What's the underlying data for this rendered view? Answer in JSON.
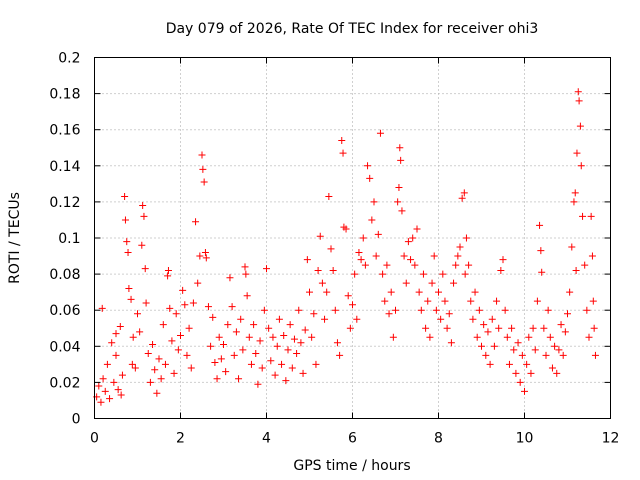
{
  "chart_data": {
    "type": "scatter",
    "title": "Day 079 of 2026, Rate Of TEC Index for receiver ohi3",
    "xlabel": "GPS time / hours",
    "ylabel": "ROTI / TECUs",
    "xlim": [
      0,
      12
    ],
    "ylim": [
      0,
      0.2
    ],
    "xticks": [
      "0",
      "2",
      "4",
      "6",
      "8",
      "10",
      "12"
    ],
    "yticks": [
      "0",
      "0.02",
      "0.04",
      "0.06",
      "0.08",
      "0.1",
      "0.12",
      "0.14",
      "0.16",
      "0.18",
      "0.2"
    ],
    "grid": true,
    "marker": "plus",
    "color": "#ff0000",
    "series": [
      {
        "points": [
          [
            0.05,
            0.012
          ],
          [
            0.1,
            0.018
          ],
          [
            0.15,
            0.009
          ],
          [
            0.2,
            0.022
          ],
          [
            0.25,
            0.015
          ],
          [
            0.3,
            0.03
          ],
          [
            0.35,
            0.011
          ],
          [
            0.4,
            0.042
          ],
          [
            0.45,
            0.02
          ],
          [
            0.5,
            0.035
          ],
          [
            0.55,
            0.016
          ],
          [
            0.6,
            0.051
          ],
          [
            0.65,
            0.024
          ],
          [
            0.7,
            0.123
          ],
          [
            0.72,
            0.11
          ],
          [
            0.75,
            0.098
          ],
          [
            0.78,
            0.092
          ],
          [
            0.8,
            0.072
          ],
          [
            0.85,
            0.066
          ],
          [
            0.9,
            0.045
          ],
          [
            0.95,
            0.028
          ],
          [
            1.0,
            0.058
          ],
          [
            1.05,
            0.048
          ],
          [
            1.1,
            0.096
          ],
          [
            1.12,
            0.118
          ],
          [
            1.15,
            0.112
          ],
          [
            1.18,
            0.083
          ],
          [
            1.2,
            0.064
          ],
          [
            1.25,
            0.036
          ],
          [
            1.3,
            0.02
          ],
          [
            0.18,
            0.061
          ],
          [
            0.5,
            0.047
          ],
          [
            0.62,
            0.013
          ],
          [
            0.88,
            0.03
          ],
          [
            1.35,
            0.041
          ],
          [
            1.4,
            0.027
          ],
          [
            1.45,
            0.014
          ],
          [
            1.5,
            0.033
          ],
          [
            1.55,
            0.022
          ],
          [
            1.6,
            0.052
          ],
          [
            1.65,
            0.03
          ],
          [
            1.7,
            0.079
          ],
          [
            1.72,
            0.082
          ],
          [
            1.75,
            0.061
          ],
          [
            1.8,
            0.043
          ],
          [
            1.85,
            0.025
          ],
          [
            1.9,
            0.058
          ],
          [
            1.95,
            0.038
          ],
          [
            2.0,
            0.046
          ],
          [
            2.05,
            0.071
          ],
          [
            2.1,
            0.063
          ],
          [
            2.15,
            0.035
          ],
          [
            2.2,
            0.05
          ],
          [
            2.25,
            0.028
          ],
          [
            2.3,
            0.064
          ],
          [
            2.35,
            0.109
          ],
          [
            2.4,
            0.075
          ],
          [
            2.45,
            0.09
          ],
          [
            2.5,
            0.146
          ],
          [
            2.52,
            0.138
          ],
          [
            2.55,
            0.131
          ],
          [
            2.58,
            0.092
          ],
          [
            2.6,
            0.089
          ],
          [
            2.65,
            0.062
          ],
          [
            2.7,
            0.04
          ],
          [
            2.75,
            0.056
          ],
          [
            2.8,
            0.031
          ],
          [
            2.85,
            0.022
          ],
          [
            2.9,
            0.045
          ],
          [
            2.95,
            0.033
          ],
          [
            3.0,
            0.041
          ],
          [
            3.05,
            0.026
          ],
          [
            3.1,
            0.052
          ],
          [
            3.15,
            0.078
          ],
          [
            3.2,
            0.062
          ],
          [
            3.25,
            0.035
          ],
          [
            3.3,
            0.048
          ],
          [
            3.35,
            0.022
          ],
          [
            3.4,
            0.055
          ],
          [
            3.45,
            0.038
          ],
          [
            3.5,
            0.084
          ],
          [
            3.52,
            0.08
          ],
          [
            3.55,
            0.068
          ],
          [
            3.6,
            0.045
          ],
          [
            3.65,
            0.03
          ],
          [
            3.7,
            0.052
          ],
          [
            3.75,
            0.036
          ],
          [
            3.8,
            0.019
          ],
          [
            3.85,
            0.043
          ],
          [
            3.9,
            0.028
          ],
          [
            3.95,
            0.06
          ],
          [
            4.0,
            0.083
          ],
          [
            4.05,
            0.05
          ],
          [
            4.1,
            0.032
          ],
          [
            4.15,
            0.045
          ],
          [
            4.2,
            0.024
          ],
          [
            4.25,
            0.04
          ],
          [
            4.3,
            0.055
          ],
          [
            4.35,
            0.03
          ],
          [
            4.4,
            0.046
          ],
          [
            4.45,
            0.021
          ],
          [
            4.5,
            0.038
          ],
          [
            4.55,
            0.052
          ],
          [
            4.6,
            0.028
          ],
          [
            4.65,
            0.044
          ],
          [
            4.7,
            0.036
          ],
          [
            4.75,
            0.06
          ],
          [
            4.8,
            0.042
          ],
          [
            4.85,
            0.025
          ],
          [
            4.9,
            0.049
          ],
          [
            4.95,
            0.088
          ],
          [
            5.0,
            0.07
          ],
          [
            5.05,
            0.045
          ],
          [
            5.1,
            0.058
          ],
          [
            5.15,
            0.03
          ],
          [
            5.2,
            0.082
          ],
          [
            5.25,
            0.101
          ],
          [
            5.3,
            0.075
          ],
          [
            5.35,
            0.055
          ],
          [
            5.4,
            0.07
          ],
          [
            5.45,
            0.123
          ],
          [
            5.5,
            0.094
          ],
          [
            5.55,
            0.082
          ],
          [
            5.6,
            0.06
          ],
          [
            5.65,
            0.042
          ],
          [
            5.7,
            0.035
          ],
          [
            5.75,
            0.154
          ],
          [
            5.78,
            0.147
          ],
          [
            5.8,
            0.106
          ],
          [
            5.85,
            0.105
          ],
          [
            5.9,
            0.068
          ],
          [
            5.95,
            0.05
          ],
          [
            6.0,
            0.063
          ],
          [
            6.05,
            0.08
          ],
          [
            6.1,
            0.055
          ],
          [
            6.15,
            0.092
          ],
          [
            6.2,
            0.088
          ],
          [
            6.25,
            0.1
          ],
          [
            6.3,
            0.085
          ],
          [
            6.35,
            0.14
          ],
          [
            6.4,
            0.133
          ],
          [
            6.45,
            0.11
          ],
          [
            6.5,
            0.12
          ],
          [
            6.55,
            0.09
          ],
          [
            6.6,
            0.102
          ],
          [
            6.65,
            0.158
          ],
          [
            6.7,
            0.08
          ],
          [
            6.75,
            0.065
          ],
          [
            6.8,
            0.085
          ],
          [
            6.85,
            0.058
          ],
          [
            6.9,
            0.07
          ],
          [
            6.95,
            0.045
          ],
          [
            7.0,
            0.06
          ],
          [
            7.05,
            0.12
          ],
          [
            7.08,
            0.128
          ],
          [
            7.1,
            0.15
          ],
          [
            7.12,
            0.143
          ],
          [
            7.15,
            0.115
          ],
          [
            7.2,
            0.09
          ],
          [
            7.25,
            0.075
          ],
          [
            7.3,
            0.098
          ],
          [
            7.35,
            0.088
          ],
          [
            7.4,
            0.1
          ],
          [
            7.45,
            0.085
          ],
          [
            7.5,
            0.105
          ],
          [
            7.55,
            0.07
          ],
          [
            7.6,
            0.06
          ],
          [
            7.65,
            0.08
          ],
          [
            7.7,
            0.05
          ],
          [
            7.75,
            0.065
          ],
          [
            7.8,
            0.045
          ],
          [
            7.85,
            0.075
          ],
          [
            7.9,
            0.09
          ],
          [
            7.95,
            0.06
          ],
          [
            8.0,
            0.07
          ],
          [
            8.05,
            0.055
          ],
          [
            8.1,
            0.08
          ],
          [
            8.15,
            0.065
          ],
          [
            8.2,
            0.05
          ],
          [
            8.25,
            0.058
          ],
          [
            8.3,
            0.042
          ],
          [
            8.35,
            0.075
          ],
          [
            8.4,
            0.085
          ],
          [
            8.45,
            0.09
          ],
          [
            8.5,
            0.095
          ],
          [
            8.55,
            0.122
          ],
          [
            8.6,
            0.125
          ],
          [
            8.62,
            0.08
          ],
          [
            8.65,
            0.1
          ],
          [
            8.7,
            0.085
          ],
          [
            8.75,
            0.065
          ],
          [
            8.8,
            0.055
          ],
          [
            8.85,
            0.07
          ],
          [
            8.9,
            0.045
          ],
          [
            8.95,
            0.06
          ],
          [
            9.0,
            0.04
          ],
          [
            9.05,
            0.052
          ],
          [
            9.1,
            0.035
          ],
          [
            9.15,
            0.048
          ],
          [
            9.2,
            0.03
          ],
          [
            9.25,
            0.055
          ],
          [
            9.3,
            0.04
          ],
          [
            9.35,
            0.065
          ],
          [
            9.4,
            0.05
          ],
          [
            9.45,
            0.082
          ],
          [
            9.5,
            0.088
          ],
          [
            9.55,
            0.06
          ],
          [
            9.6,
            0.045
          ],
          [
            9.65,
            0.03
          ],
          [
            9.7,
            0.05
          ],
          [
            9.75,
            0.038
          ],
          [
            9.8,
            0.025
          ],
          [
            9.85,
            0.042
          ],
          [
            9.9,
            0.02
          ],
          [
            9.95,
            0.035
          ],
          [
            10.0,
            0.015
          ],
          [
            10.05,
            0.03
          ],
          [
            10.1,
            0.045
          ],
          [
            10.15,
            0.025
          ],
          [
            10.2,
            0.05
          ],
          [
            10.25,
            0.038
          ],
          [
            10.3,
            0.065
          ],
          [
            10.35,
            0.107
          ],
          [
            10.38,
            0.093
          ],
          [
            10.4,
            0.081
          ],
          [
            10.45,
            0.05
          ],
          [
            10.5,
            0.035
          ],
          [
            10.55,
            0.06
          ],
          [
            10.6,
            0.045
          ],
          [
            10.65,
            0.028
          ],
          [
            10.7,
            0.04
          ],
          [
            10.75,
            0.025
          ],
          [
            10.8,
            0.038
          ],
          [
            10.85,
            0.052
          ],
          [
            10.9,
            0.035
          ],
          [
            10.95,
            0.048
          ],
          [
            11.0,
            0.058
          ],
          [
            11.05,
            0.07
          ],
          [
            11.1,
            0.095
          ],
          [
            11.15,
            0.12
          ],
          [
            11.18,
            0.125
          ],
          [
            11.2,
            0.082
          ],
          [
            11.22,
            0.147
          ],
          [
            11.25,
            0.181
          ],
          [
            11.27,
            0.176
          ],
          [
            11.3,
            0.162
          ],
          [
            11.32,
            0.14
          ],
          [
            11.35,
            0.112
          ],
          [
            11.4,
            0.085
          ],
          [
            11.45,
            0.06
          ],
          [
            11.5,
            0.045
          ],
          [
            11.55,
            0.112
          ],
          [
            11.58,
            0.09
          ],
          [
            11.6,
            0.065
          ],
          [
            11.62,
            0.05
          ],
          [
            11.65,
            0.035
          ]
        ]
      }
    ]
  }
}
